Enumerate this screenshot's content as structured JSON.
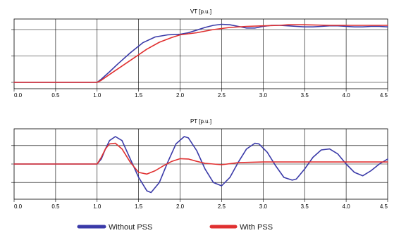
{
  "chart_data": [
    {
      "type": "line",
      "title": "VT [p.u.]",
      "xlim": [
        0.0,
        4.5
      ],
      "x_ticks": [
        "0.0",
        "0.5",
        "1.0",
        "1.5",
        "2.0",
        "2.5",
        "3.0",
        "3.5",
        "4.0",
        "4.5"
      ],
      "grid": true,
      "series": [
        {
          "name": "Without PSS",
          "color": "#3a3aa8",
          "x": [
            0.0,
            0.5,
            1.0,
            1.05,
            1.15,
            1.25,
            1.4,
            1.55,
            1.7,
            1.85,
            2.0,
            2.1,
            2.2,
            2.3,
            2.4,
            2.5,
            2.6,
            2.7,
            2.8,
            2.9,
            3.0,
            3.1,
            3.2,
            3.3,
            3.4,
            3.5,
            3.6,
            3.7,
            3.8,
            3.9,
            4.0,
            4.1,
            4.2,
            4.3,
            4.4,
            4.5
          ],
          "y": [
            0.0,
            0.0,
            0.0,
            0.06,
            0.2,
            0.35,
            0.56,
            0.75,
            0.86,
            0.9,
            0.91,
            0.94,
            0.99,
            1.04,
            1.08,
            1.1,
            1.09,
            1.06,
            1.03,
            1.03,
            1.06,
            1.08,
            1.08,
            1.07,
            1.06,
            1.05,
            1.05,
            1.06,
            1.07,
            1.07,
            1.06,
            1.05,
            1.05,
            1.06,
            1.06,
            1.05
          ]
        },
        {
          "name": "With PSS",
          "color": "#e03030",
          "x": [
            0.0,
            0.5,
            1.0,
            1.05,
            1.15,
            1.3,
            1.45,
            1.6,
            1.75,
            1.9,
            2.0,
            2.2,
            2.4,
            2.6,
            2.8,
            3.0,
            3.2,
            3.3,
            3.5,
            3.8,
            4.0,
            4.2,
            4.5
          ],
          "y": [
            0.0,
            0.0,
            0.0,
            0.04,
            0.15,
            0.31,
            0.47,
            0.63,
            0.76,
            0.85,
            0.9,
            0.94,
            1.0,
            1.04,
            1.06,
            1.07,
            1.08,
            1.09,
            1.09,
            1.08,
            1.08,
            1.08,
            1.08
          ]
        }
      ]
    },
    {
      "type": "line",
      "title": "PT [p.u.]",
      "xlim": [
        0.0,
        4.5
      ],
      "x_ticks": [
        "0.0",
        "0.5",
        "1.0",
        "1.5",
        "2.0",
        "2.5",
        "3.0",
        "3.5",
        "4.0",
        "4.5"
      ],
      "grid": true,
      "series": [
        {
          "name": "Without PSS",
          "color": "#3a3aa8",
          "x": [
            0.0,
            0.5,
            1.0,
            1.05,
            1.1,
            1.15,
            1.22,
            1.3,
            1.4,
            1.5,
            1.6,
            1.65,
            1.75,
            1.85,
            1.95,
            2.05,
            2.1,
            2.2,
            2.3,
            2.4,
            2.5,
            2.6,
            2.7,
            2.8,
            2.9,
            2.95,
            3.05,
            3.15,
            3.25,
            3.35,
            3.4,
            3.5,
            3.6,
            3.7,
            3.8,
            3.9,
            4.0,
            4.1,
            4.2,
            4.3,
            4.4,
            4.5
          ],
          "y": [
            0.0,
            0.0,
            0.0,
            0.15,
            0.45,
            0.7,
            0.82,
            0.7,
            0.15,
            -0.4,
            -0.8,
            -0.85,
            -0.55,
            0.05,
            0.6,
            0.82,
            0.78,
            0.4,
            -0.15,
            -0.55,
            -0.65,
            -0.4,
            0.05,
            0.45,
            0.62,
            0.6,
            0.35,
            -0.05,
            -0.4,
            -0.48,
            -0.45,
            -0.15,
            0.2,
            0.42,
            0.45,
            0.3,
            0.0,
            -0.25,
            -0.35,
            -0.2,
            0.0,
            0.15
          ]
        },
        {
          "name": "With PSS",
          "color": "#e03030",
          "x": [
            0.0,
            0.5,
            1.0,
            1.05,
            1.1,
            1.15,
            1.22,
            1.3,
            1.4,
            1.5,
            1.6,
            1.7,
            1.8,
            1.9,
            2.0,
            2.1,
            2.2,
            2.3,
            2.5,
            2.7,
            3.0,
            3.5,
            4.0,
            4.5
          ],
          "y": [
            0.0,
            0.0,
            0.0,
            0.2,
            0.45,
            0.6,
            0.62,
            0.45,
            0.05,
            -0.25,
            -0.3,
            -0.2,
            -0.05,
            0.08,
            0.16,
            0.15,
            0.08,
            0.02,
            -0.02,
            0.04,
            0.06,
            0.06,
            0.06,
            0.06
          ]
        }
      ]
    }
  ],
  "legend": {
    "placement": "bottom",
    "items": [
      {
        "label": "Without PSS",
        "color": "#3a3aa8"
      },
      {
        "label": "With PSS",
        "color": "#e03030"
      }
    ]
  }
}
